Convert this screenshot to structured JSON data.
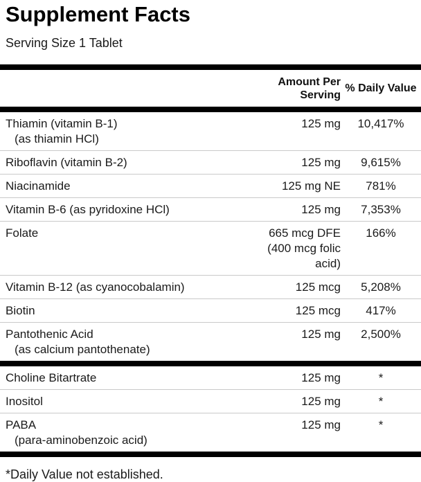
{
  "label": {
    "title": "Supplement Facts",
    "serving_size": "Serving Size 1 Tablet",
    "header": {
      "amount": "Amount Per Serving",
      "daily_value": "% Daily Value"
    },
    "footnote": "*Daily Value not established.",
    "colors": {
      "text": "#1a1a1a",
      "bar": "#000000",
      "separator": "#c9c9c9",
      "background": "#ffffff"
    }
  },
  "rows": [
    {
      "group": 1,
      "name": "Thiamin (vitamin B-1)",
      "subname": "(as thiamin HCl)",
      "amount": "125 mg",
      "daily_value": "10,417%"
    },
    {
      "group": 1,
      "name": "Riboflavin (vitamin B-2)",
      "subname": "",
      "amount": "125 mg",
      "daily_value": "9,615%"
    },
    {
      "group": 1,
      "name": "Niacinamide",
      "subname": "",
      "amount": "125 mg NE",
      "daily_value": "781%"
    },
    {
      "group": 1,
      "name": "Vitamin B-6 (as pyridoxine HCl)",
      "subname": "",
      "amount": "125 mg",
      "daily_value": "7,353%"
    },
    {
      "group": 1,
      "name": "Folate",
      "subname": "",
      "amount": "665 mcg DFE (400 mcg folic acid)",
      "daily_value": "166%"
    },
    {
      "group": 1,
      "name": "Vitamin B-12 (as cyanocobalamin)",
      "subname": "",
      "amount": "125 mcg",
      "daily_value": "5,208%"
    },
    {
      "group": 1,
      "name": "Biotin",
      "subname": "",
      "amount": "125 mcg",
      "daily_value": "417%"
    },
    {
      "group": 1,
      "name": "Pantothenic Acid",
      "subname": "(as calcium pantothenate)",
      "amount": "125 mg",
      "daily_value": "2,500%"
    },
    {
      "group": 2,
      "name": "Choline Bitartrate",
      "subname": "",
      "amount": "125 mg",
      "daily_value": "*"
    },
    {
      "group": 2,
      "name": "Inositol",
      "subname": "",
      "amount": "125 mg",
      "daily_value": "*"
    },
    {
      "group": 2,
      "name": "PABA",
      "subname": "(para-aminobenzoic acid)",
      "amount": "125 mg",
      "daily_value": "*"
    }
  ]
}
